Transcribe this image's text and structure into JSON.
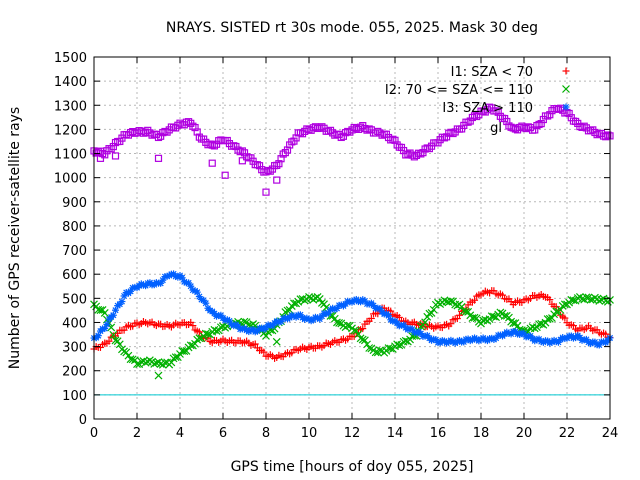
{
  "chart_data": {
    "type": "scatter",
    "title": "NRAYS. SISTED rt 30s mode. 055, 2025. Mask 30 deg",
    "xlabel": "GPS time [hours of doy 055, 2025]",
    "ylabel": "Number of GPS receiver-satellite rays",
    "xlim": [
      0,
      24
    ],
    "ylim": [
      0,
      1500
    ],
    "xticks": [
      "0",
      "2",
      "4",
      "6",
      "8",
      "10",
      "12",
      "14",
      "16",
      "18",
      "20",
      "22",
      "24"
    ],
    "yticks": [
      "0",
      "100",
      "200",
      "300",
      "400",
      "500",
      "600",
      "700",
      "800",
      "900",
      "1000",
      "1100",
      "1200",
      "1300",
      "1400",
      "1500"
    ],
    "grid": true,
    "legend_position": "top-right",
    "threshold_line": {
      "y": 100,
      "color": "#00c8d0"
    },
    "series": [
      {
        "name": "I1: SZA < 70",
        "color": "#ff0000",
        "marker": "+",
        "x": [
          0,
          0.5,
          1,
          1.5,
          2,
          2.5,
          3,
          3.5,
          4,
          4.5,
          5,
          5.5,
          6,
          6.5,
          7,
          7.5,
          8,
          8.5,
          9,
          9.5,
          10,
          10.5,
          11,
          11.5,
          12,
          12.5,
          13,
          13.5,
          14,
          14.5,
          15,
          15.5,
          16,
          16.5,
          17,
          17.5,
          18,
          18.5,
          19,
          19.5,
          20,
          20.5,
          21,
          21.5,
          22,
          22.5,
          23,
          23.5,
          24
        ],
        "y": [
          290,
          310,
          350,
          380,
          395,
          400,
          390,
          385,
          395,
          395,
          345,
          320,
          325,
          320,
          320,
          305,
          265,
          255,
          270,
          290,
          295,
          300,
          315,
          325,
          340,
          380,
          430,
          460,
          430,
          400,
          395,
          385,
          380,
          390,
          430,
          480,
          520,
          530,
          510,
          480,
          490,
          510,
          510,
          460,
          400,
          370,
          380,
          360,
          340
        ]
      },
      {
        "name": "I2: 70 <= SZA <= 110",
        "color": "#00b000",
        "marker": "x",
        "x": [
          0,
          0.5,
          1,
          1.5,
          2,
          2.5,
          3,
          3.5,
          4,
          4.5,
          5,
          5.5,
          6,
          6.5,
          7,
          7.5,
          8,
          8.5,
          9,
          9.5,
          10,
          10.5,
          11,
          11.5,
          12,
          12.5,
          13,
          13.5,
          14,
          14.5,
          15,
          15.5,
          16,
          16.5,
          17,
          17.5,
          18,
          18.5,
          19,
          19.5,
          20,
          20.5,
          21,
          21.5,
          22,
          22.5,
          23,
          23.5,
          24
        ],
        "y": [
          470,
          440,
          330,
          270,
          230,
          240,
          230,
          230,
          270,
          300,
          340,
          360,
          380,
          395,
          400,
          385,
          350,
          385,
          450,
          490,
          500,
          500,
          430,
          390,
          380,
          330,
          280,
          280,
          300,
          320,
          350,
          420,
          480,
          490,
          470,
          430,
          400,
          420,
          440,
          400,
          360,
          380,
          400,
          440,
          480,
          500,
          500,
          495,
          490
        ]
      },
      {
        "name": "I3: SZA > 110",
        "color": "#0060ff",
        "marker": "*",
        "x": [
          0,
          0.5,
          1,
          1.5,
          2,
          2.5,
          3,
          3.5,
          4,
          4.5,
          5,
          5.5,
          6,
          6.5,
          7,
          7.5,
          8,
          8.5,
          9,
          9.5,
          10,
          10.5,
          11,
          11.5,
          12,
          12.5,
          13,
          13.5,
          14,
          14.5,
          15,
          15.5,
          16,
          16.5,
          17,
          17.5,
          18,
          18.5,
          19,
          19.5,
          20,
          20.5,
          21,
          21.5,
          22,
          22.5,
          23,
          23.5,
          24
        ],
        "y": [
          330,
          380,
          450,
          520,
          550,
          560,
          560,
          600,
          590,
          550,
          500,
          440,
          420,
          390,
          370,
          365,
          380,
          400,
          420,
          430,
          410,
          420,
          450,
          470,
          490,
          490,
          470,
          440,
          400,
          380,
          360,
          340,
          320,
          320,
          320,
          330,
          330,
          330,
          350,
          360,
          350,
          330,
          320,
          320,
          340,
          340,
          320,
          310,
          330
        ]
      },
      {
        "name": "gl",
        "color": "#b000e0",
        "marker": "square",
        "x": [
          0,
          0.5,
          1,
          1.5,
          2,
          2.5,
          3,
          3.5,
          4,
          4.5,
          5,
          5.5,
          6,
          6.5,
          7,
          7.5,
          8,
          8.5,
          9,
          9.5,
          10,
          10.5,
          11,
          11.5,
          12,
          12.5,
          13,
          13.5,
          14,
          14.5,
          15,
          15.5,
          16,
          16.5,
          17,
          17.5,
          18,
          18.5,
          19,
          19.5,
          20,
          20.5,
          21,
          21.5,
          22,
          22.5,
          23,
          23.5,
          24
        ],
        "y": [
          1110,
          1100,
          1140,
          1180,
          1190,
          1190,
          1170,
          1200,
          1220,
          1230,
          1160,
          1130,
          1160,
          1130,
          1100,
          1060,
          1020,
          1050,
          1120,
          1180,
          1200,
          1210,
          1190,
          1170,
          1200,
          1210,
          1190,
          1180,
          1150,
          1100,
          1090,
          1120,
          1150,
          1180,
          1200,
          1240,
          1270,
          1290,
          1250,
          1200,
          1210,
          1200,
          1250,
          1290,
          1270,
          1220,
          1200,
          1180,
          1170
        ]
      }
    ],
    "outlier_points": [
      {
        "series": "gl",
        "x": [
          0.3,
          1.0,
          3.0,
          5.5,
          6.1,
          6.9,
          8.0,
          8.5
        ],
        "y": [
          1080,
          1090,
          1080,
          1060,
          1010,
          1070,
          940,
          990
        ]
      },
      {
        "series": "I2: 70 <= SZA <= 110",
        "x": [
          3.0,
          8.5
        ],
        "y": [
          180,
          320
        ]
      }
    ]
  }
}
